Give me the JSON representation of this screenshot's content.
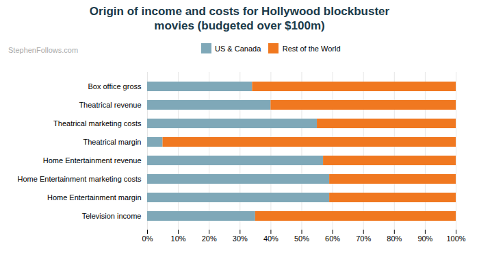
{
  "chart_data": {
    "type": "bar",
    "title": "Origin of income and costs for Hollywood blockbuster\nmovies (budgeted over $100m)",
    "annotations": [
      "StephenFollows.com"
    ],
    "orientation": "horizontal",
    "stacked": true,
    "categories": [
      "Box office gross",
      "Theatrical revenue",
      "Theatrical marketing costs",
      "Theatrical margin",
      "Home Entertainment revenue",
      "Home Entertainment marketing costs",
      "Home Entertainment margin",
      "Television income"
    ],
    "series": [
      {
        "name": "US & Canada",
        "color": "#7fa8b8",
        "values": [
          34,
          40,
          55,
          5,
          57,
          59,
          59,
          35
        ]
      },
      {
        "name": "Rest of the World",
        "color": "#f07820",
        "values": [
          66,
          60,
          45,
          95,
          43,
          41,
          41,
          65
        ]
      }
    ],
    "xlim": [
      0,
      100
    ],
    "xticks": [
      {
        "value": 0,
        "label": "0%"
      },
      {
        "value": 10,
        "label": "10%"
      },
      {
        "value": 20,
        "label": "20%"
      },
      {
        "value": 30,
        "label": "30%"
      },
      {
        "value": 40,
        "label": "40%"
      },
      {
        "value": 50,
        "label": "50%"
      },
      {
        "value": 60,
        "label": "60%"
      },
      {
        "value": 70,
        "label": "70%"
      },
      {
        "value": 80,
        "label": "80%"
      },
      {
        "value": 90,
        "label": "90%"
      },
      {
        "value": 100,
        "label": "100%"
      }
    ],
    "grid": true,
    "legend": "top"
  }
}
